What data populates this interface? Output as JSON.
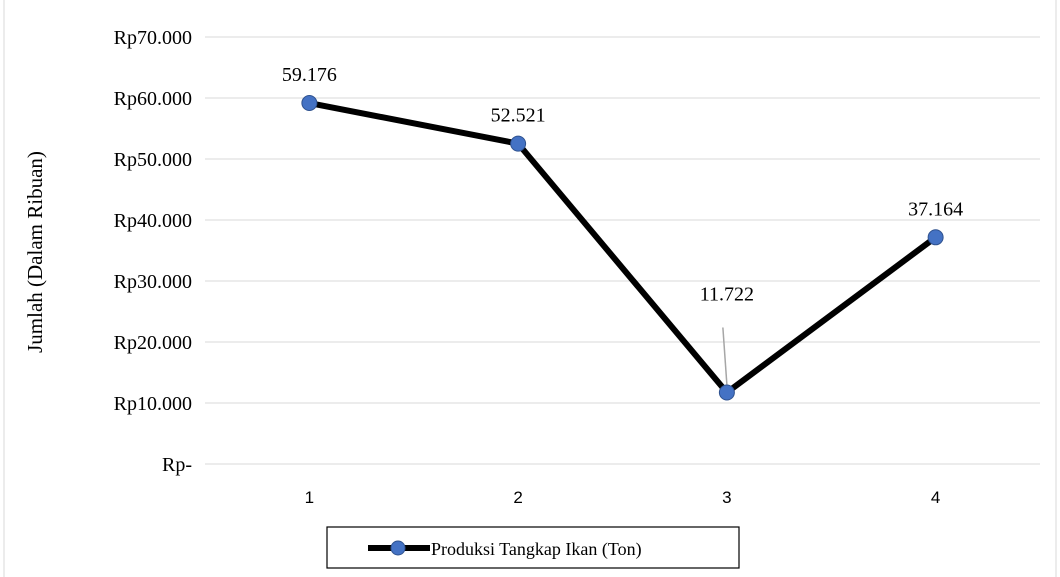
{
  "chart_data": {
    "type": "line",
    "title": "",
    "xlabel": "",
    "ylabel": "Jumlah (Dalam Ribuan)",
    "categories": [
      "1",
      "2",
      "3",
      "4"
    ],
    "series": [
      {
        "name": "Produksi Tangkap Ikan (Ton)",
        "values": [
          59176,
          52521,
          11722,
          37164
        ],
        "data_labels": [
          "59.176",
          "52.521",
          "11.722",
          "37.164"
        ],
        "line_color": "#000000",
        "marker_color": "#4472C4"
      }
    ],
    "ylim": [
      0,
      70000
    ],
    "yticks": [
      {
        "value": 0,
        "label": "Rp-"
      },
      {
        "value": 10000,
        "label": "Rp10.000"
      },
      {
        "value": 20000,
        "label": "Rp20.000"
      },
      {
        "value": 30000,
        "label": "Rp30.000"
      },
      {
        "value": 40000,
        "label": "Rp40.000"
      },
      {
        "value": 50000,
        "label": "Rp50.000"
      },
      {
        "value": 60000,
        "label": "Rp60.000"
      },
      {
        "value": 70000,
        "label": "Rp70.000"
      }
    ],
    "grid": true,
    "legend_position": "bottom",
    "gridline_color": "#d9d9d9"
  }
}
